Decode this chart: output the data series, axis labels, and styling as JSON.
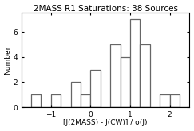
{
  "title": "2MASS R1 Saturations: 38 Sources",
  "xlabel": "[J(2MASS) - J(CW)] / σ(J)",
  "ylabel": "Number",
  "bin_edges": [
    -1.5,
    -1.25,
    -1.0,
    -0.75,
    -0.5,
    -0.25,
    0.0,
    0.25,
    0.5,
    0.75,
    1.0,
    1.25,
    1.5,
    1.75,
    2.0,
    2.25
  ],
  "counts": [
    1,
    0,
    1,
    0,
    2,
    1,
    3,
    0,
    5,
    4,
    7,
    5,
    0,
    1,
    1,
    0
  ],
  "xlim": [
    -1.75,
    2.5
  ],
  "ylim": [
    0,
    7.5
  ],
  "yticks": [
    0,
    2,
    4,
    6
  ],
  "xticks": [
    -1,
    0,
    1,
    2
  ],
  "bar_facecolor": "white",
  "bar_edgecolor": "#666666",
  "background_color": "white",
  "title_fontsize": 7.5,
  "label_fontsize": 6.5,
  "tick_fontsize": 6.5,
  "linewidth": 0.9
}
